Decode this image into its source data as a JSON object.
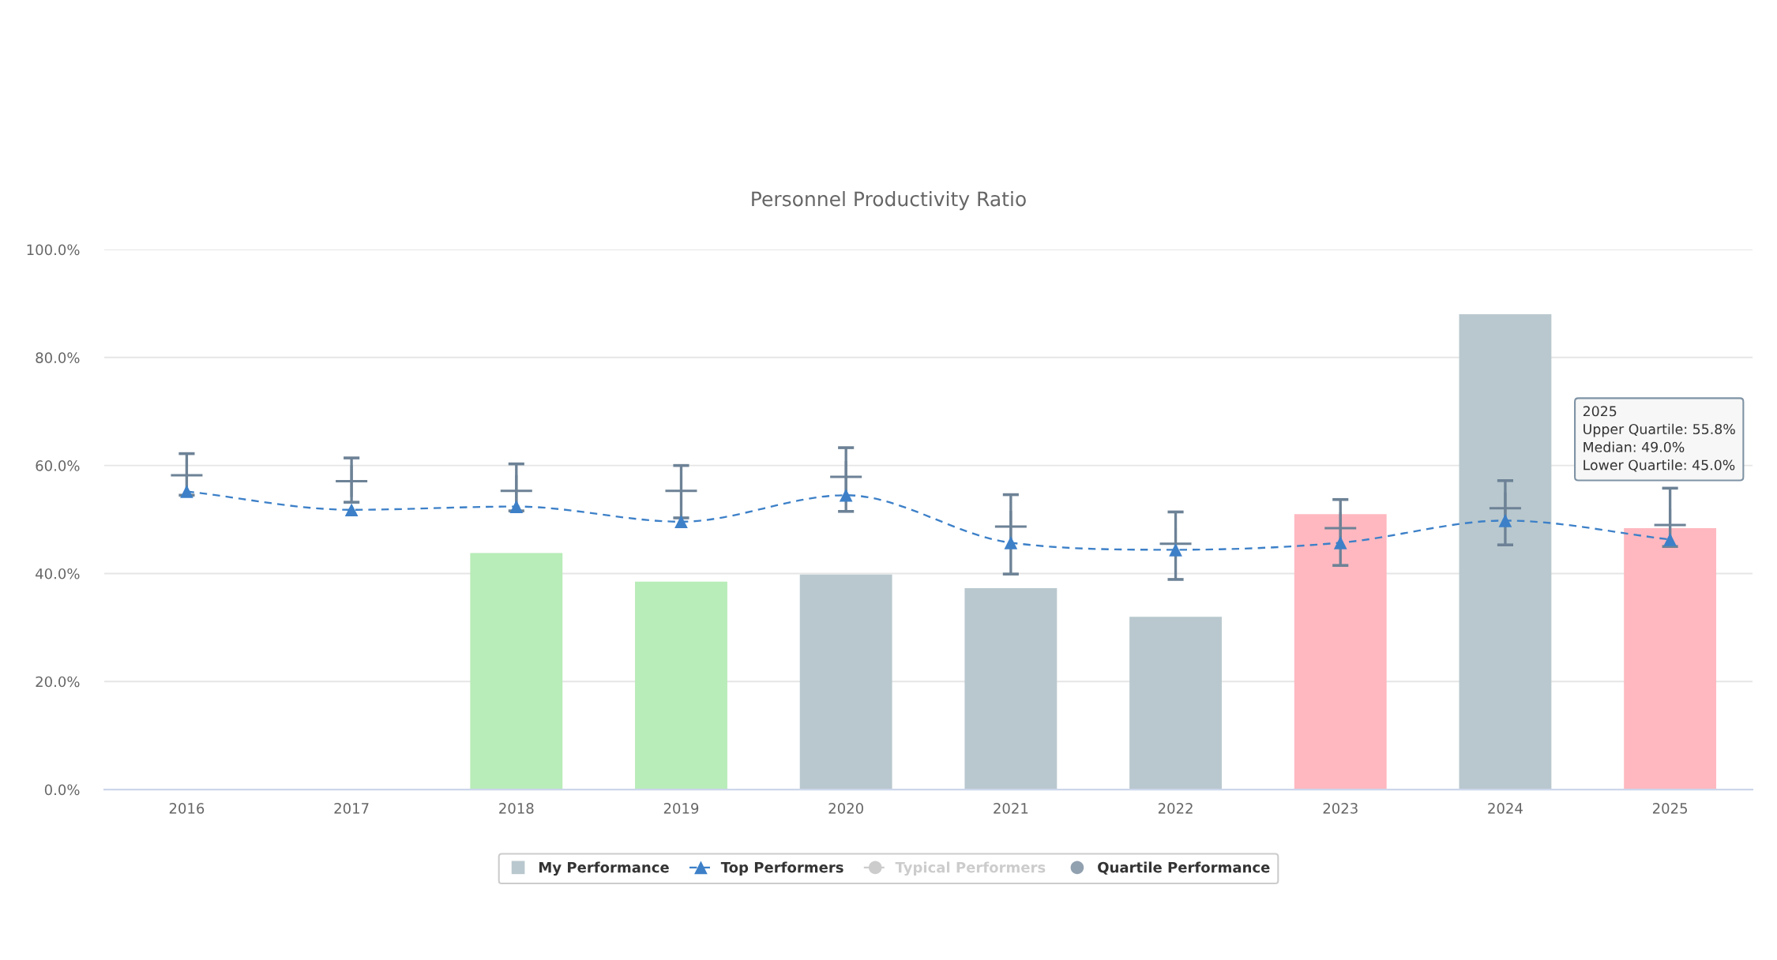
{
  "chart_data": {
    "type": "bar",
    "title": "Personnel Productivity Ratio",
    "categories": [
      "2016",
      "2017",
      "2018",
      "2019",
      "2020",
      "2021",
      "2022",
      "2023",
      "2024",
      "2025"
    ],
    "series": [
      {
        "name": "My Performance",
        "color": "#b9c8ce",
        "colors": [
          null,
          null,
          "#b8ecb8",
          "#b8ecb8",
          "#b9c8ce",
          "#b9c8ce",
          "#b9c8ce",
          "#ffb8c0",
          "#b9c8ce",
          "#ffb8c0"
        ],
        "values": [
          null,
          null,
          43.8,
          38.5,
          39.8,
          37.3,
          32.0,
          51.0,
          88.0,
          48.4
        ]
      },
      {
        "name": "Top Performers",
        "type": "line",
        "color": "#3d80c8",
        "marker": "triangle",
        "line_style": "dashed",
        "values": [
          55.2,
          51.8,
          52.4,
          49.6,
          54.5,
          45.7,
          44.4,
          45.7,
          49.8,
          46.3
        ]
      },
      {
        "name": "Typical Performers",
        "type": "line",
        "color": "#cccccc",
        "marker": "circle",
        "line_style": "dashed",
        "values": [
          null,
          null,
          null,
          null,
          null,
          null,
          null,
          null,
          null,
          null
        ]
      },
      {
        "name": "Quartile Performance",
        "type": "scatter",
        "color": "#6d8296",
        "marker": "cross",
        "values": [
          58.2,
          57.1,
          55.3,
          55.3,
          57.9,
          48.7,
          45.5,
          48.4,
          52.1,
          49.0
        ],
        "errors": [
          [
            54.5,
            62.2
          ],
          [
            53.2,
            61.4
          ],
          [
            51.6,
            60.3
          ],
          [
            50.3,
            60.0
          ],
          [
            51.5,
            63.3
          ],
          [
            39.9,
            54.6
          ],
          [
            38.9,
            51.4
          ],
          [
            41.5,
            53.7
          ],
          [
            45.3,
            57.2
          ],
          [
            45.0,
            55.8
          ]
        ]
      }
    ],
    "ylim": [
      0,
      100
    ],
    "yticks": [
      {
        "value": 0,
        "label": "0.0%"
      },
      {
        "value": 20,
        "label": "20.0%"
      },
      {
        "value": 40,
        "label": "40.0%"
      },
      {
        "value": 60,
        "label": "60.0%"
      },
      {
        "value": 80,
        "label": "80.0%"
      },
      {
        "value": 100,
        "label": "100.0%"
      }
    ],
    "grid": "y",
    "legend": "bottom",
    "annotations": [
      {
        "text": "2025\nUpper Quartile: 55.8%\nMedian: 49.0%\nLower Quartile: 45.0%",
        "x": "2025",
        "y": 55.8
      }
    ]
  }
}
